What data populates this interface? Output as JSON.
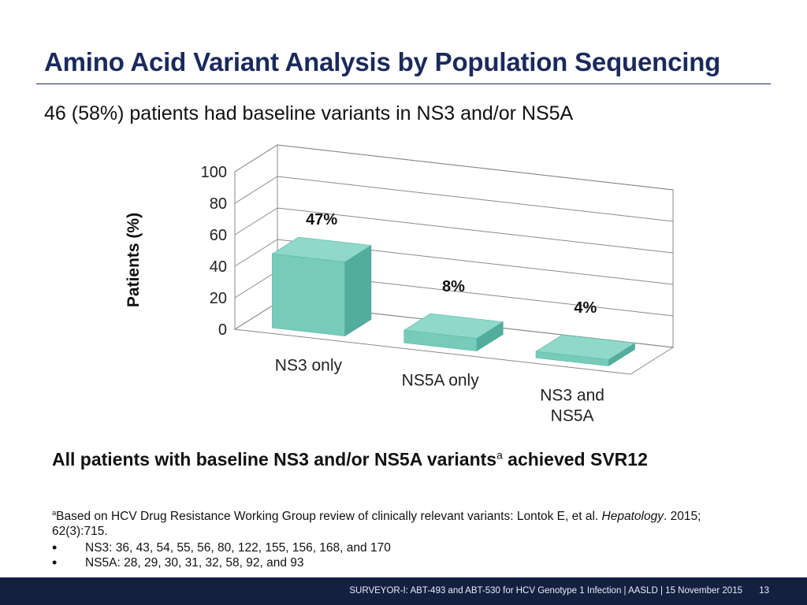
{
  "slide": {
    "title": "Amino Acid Variant Analysis by Population Sequencing",
    "subtitle": "46 (58%) patients had baseline variants in NS3 and/or NS5A",
    "conclusion_main": "All patients with baseline NS3 and/or NS5A variants",
    "conclusion_sup": "a",
    "conclusion_tail": " achieved SVR12",
    "footnote_sup": "a",
    "footnote_text": "Based on HCV Drug Resistance Working Group review of clinically relevant variants: Lontok E, et al. ",
    "footnote_journal": "Hepatology",
    "footnote_citation": ". 2015; 62(3):715.",
    "bullets": [
      "NS3: 36, 43, 54, 55, 56, 80, 122, 155, 156, 168, and 170",
      "NS5A: 28, 29, 30, 31, 32, 58, 92, and 93"
    ],
    "footer_text": "SURVEYOR-I: ABT-493 and ABT-530 for HCV Genotype 1 Infection   | AASLD | 15 November 2015",
    "page_number": "13"
  },
  "colors": {
    "title": "#1b2a5c",
    "bar_front": "#77cbbb",
    "bar_top": "#8fd8ca",
    "bar_side": "#52ad9c",
    "footer_bg": "#14203f",
    "grid": "#8a8a8a"
  },
  "chart_data": {
    "type": "bar",
    "style": "3d",
    "categories": [
      "NS3 only",
      "NS5A only",
      "NS3 and NS5A"
    ],
    "values": [
      47,
      8,
      4
    ],
    "data_labels": [
      "47%",
      "8%",
      "4%"
    ],
    "title": "",
    "xlabel": "",
    "ylabel": "Patients (%)",
    "ylim": [
      0,
      100
    ],
    "yticks": [
      0,
      20,
      40,
      60,
      80,
      100
    ],
    "grid": true,
    "legend": "none"
  }
}
